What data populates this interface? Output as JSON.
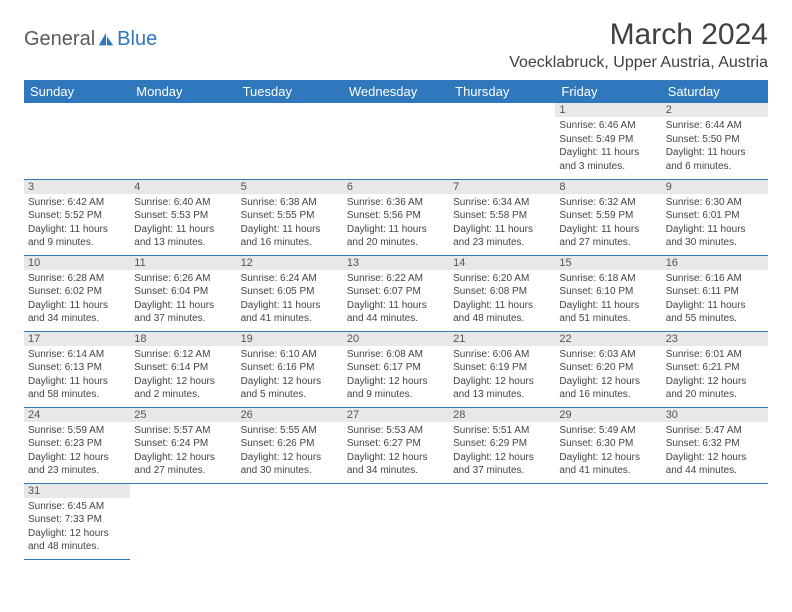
{
  "logo": {
    "text1": "General",
    "text2": "Blue"
  },
  "title": "March 2024",
  "location": "Voecklabruck, Upper Austria, Austria",
  "colors": {
    "header_bg": "#2f78bd",
    "header_text": "#ffffff",
    "daynum_bg": "#e8e8e8",
    "border": "#2f78bd",
    "logo_gray": "#5a5a5a",
    "logo_blue": "#2f78bd"
  },
  "day_headers": [
    "Sunday",
    "Monday",
    "Tuesday",
    "Wednesday",
    "Thursday",
    "Friday",
    "Saturday"
  ],
  "weeks": [
    [
      null,
      null,
      null,
      null,
      null,
      {
        "n": "1",
        "sr": "6:46 AM",
        "ss": "5:49 PM",
        "dl": "11 hours and 3 minutes."
      },
      {
        "n": "2",
        "sr": "6:44 AM",
        "ss": "5:50 PM",
        "dl": "11 hours and 6 minutes."
      }
    ],
    [
      {
        "n": "3",
        "sr": "6:42 AM",
        "ss": "5:52 PM",
        "dl": "11 hours and 9 minutes."
      },
      {
        "n": "4",
        "sr": "6:40 AM",
        "ss": "5:53 PM",
        "dl": "11 hours and 13 minutes."
      },
      {
        "n": "5",
        "sr": "6:38 AM",
        "ss": "5:55 PM",
        "dl": "11 hours and 16 minutes."
      },
      {
        "n": "6",
        "sr": "6:36 AM",
        "ss": "5:56 PM",
        "dl": "11 hours and 20 minutes."
      },
      {
        "n": "7",
        "sr": "6:34 AM",
        "ss": "5:58 PM",
        "dl": "11 hours and 23 minutes."
      },
      {
        "n": "8",
        "sr": "6:32 AM",
        "ss": "5:59 PM",
        "dl": "11 hours and 27 minutes."
      },
      {
        "n": "9",
        "sr": "6:30 AM",
        "ss": "6:01 PM",
        "dl": "11 hours and 30 minutes."
      }
    ],
    [
      {
        "n": "10",
        "sr": "6:28 AM",
        "ss": "6:02 PM",
        "dl": "11 hours and 34 minutes."
      },
      {
        "n": "11",
        "sr": "6:26 AM",
        "ss": "6:04 PM",
        "dl": "11 hours and 37 minutes."
      },
      {
        "n": "12",
        "sr": "6:24 AM",
        "ss": "6:05 PM",
        "dl": "11 hours and 41 minutes."
      },
      {
        "n": "13",
        "sr": "6:22 AM",
        "ss": "6:07 PM",
        "dl": "11 hours and 44 minutes."
      },
      {
        "n": "14",
        "sr": "6:20 AM",
        "ss": "6:08 PM",
        "dl": "11 hours and 48 minutes."
      },
      {
        "n": "15",
        "sr": "6:18 AM",
        "ss": "6:10 PM",
        "dl": "11 hours and 51 minutes."
      },
      {
        "n": "16",
        "sr": "6:16 AM",
        "ss": "6:11 PM",
        "dl": "11 hours and 55 minutes."
      }
    ],
    [
      {
        "n": "17",
        "sr": "6:14 AM",
        "ss": "6:13 PM",
        "dl": "11 hours and 58 minutes."
      },
      {
        "n": "18",
        "sr": "6:12 AM",
        "ss": "6:14 PM",
        "dl": "12 hours and 2 minutes."
      },
      {
        "n": "19",
        "sr": "6:10 AM",
        "ss": "6:16 PM",
        "dl": "12 hours and 5 minutes."
      },
      {
        "n": "20",
        "sr": "6:08 AM",
        "ss": "6:17 PM",
        "dl": "12 hours and 9 minutes."
      },
      {
        "n": "21",
        "sr": "6:06 AM",
        "ss": "6:19 PM",
        "dl": "12 hours and 13 minutes."
      },
      {
        "n": "22",
        "sr": "6:03 AM",
        "ss": "6:20 PM",
        "dl": "12 hours and 16 minutes."
      },
      {
        "n": "23",
        "sr": "6:01 AM",
        "ss": "6:21 PM",
        "dl": "12 hours and 20 minutes."
      }
    ],
    [
      {
        "n": "24",
        "sr": "5:59 AM",
        "ss": "6:23 PM",
        "dl": "12 hours and 23 minutes."
      },
      {
        "n": "25",
        "sr": "5:57 AM",
        "ss": "6:24 PM",
        "dl": "12 hours and 27 minutes."
      },
      {
        "n": "26",
        "sr": "5:55 AM",
        "ss": "6:26 PM",
        "dl": "12 hours and 30 minutes."
      },
      {
        "n": "27",
        "sr": "5:53 AM",
        "ss": "6:27 PM",
        "dl": "12 hours and 34 minutes."
      },
      {
        "n": "28",
        "sr": "5:51 AM",
        "ss": "6:29 PM",
        "dl": "12 hours and 37 minutes."
      },
      {
        "n": "29",
        "sr": "5:49 AM",
        "ss": "6:30 PM",
        "dl": "12 hours and 41 minutes."
      },
      {
        "n": "30",
        "sr": "5:47 AM",
        "ss": "6:32 PM",
        "dl": "12 hours and 44 minutes."
      }
    ],
    [
      {
        "n": "31",
        "sr": "6:45 AM",
        "ss": "7:33 PM",
        "dl": "12 hours and 48 minutes."
      },
      null,
      null,
      null,
      null,
      null,
      null
    ]
  ],
  "labels": {
    "sunrise": "Sunrise: ",
    "sunset": "Sunset: ",
    "daylight": "Daylight: "
  }
}
